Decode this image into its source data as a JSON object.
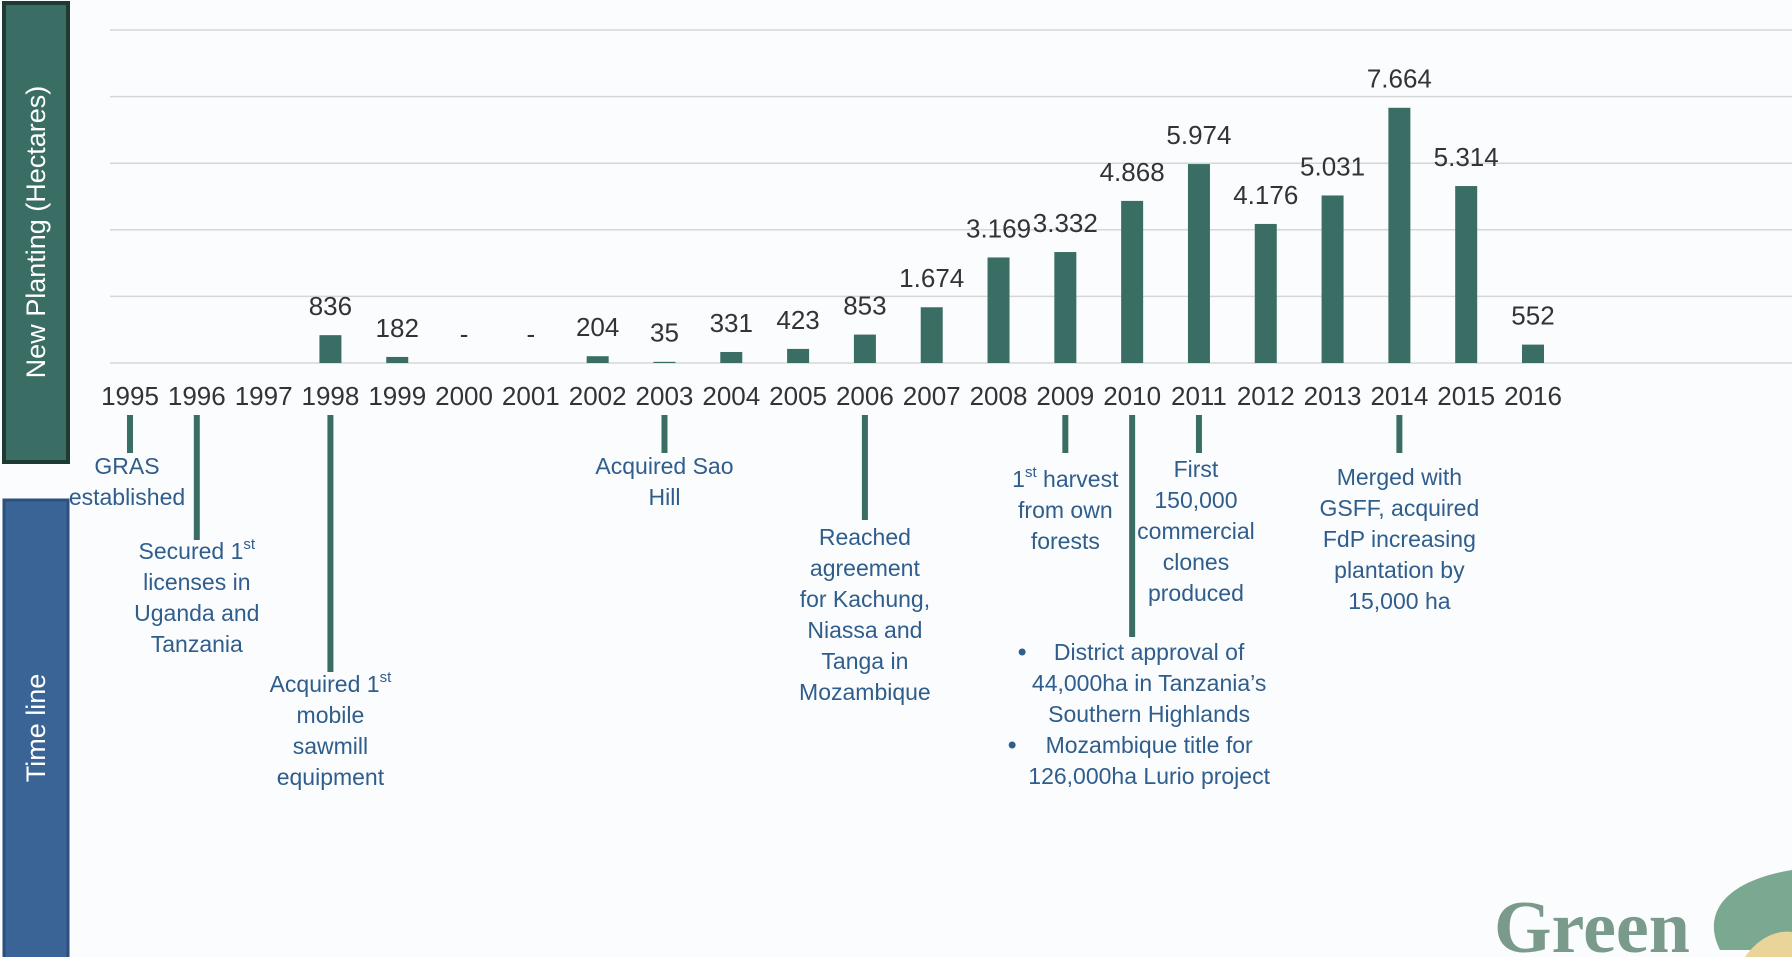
{
  "chart_data": {
    "type": "bar",
    "y_label": "New Planting (Hectares)",
    "categories": [
      "1995",
      "1996",
      "1997",
      "1998",
      "1999",
      "2000",
      "2001",
      "2002",
      "2003",
      "2004",
      "2005",
      "2006",
      "2007",
      "2008",
      "2009",
      "2010",
      "2011",
      "2012",
      "2013",
      "2014",
      "2015",
      "2016"
    ],
    "values": [
      null,
      null,
      null,
      836,
      182,
      0,
      0,
      204,
      35,
      331,
      423,
      853,
      1674,
      3169,
      3332,
      4868,
      5974,
      4176,
      5031,
      7664,
      5314,
      552
    ],
    "value_labels": [
      null,
      null,
      null,
      "836",
      "182",
      "-",
      "-",
      "204",
      "35",
      "331",
      "423",
      "853",
      "1.674",
      "3.169",
      "3.332",
      "4.868",
      "5.974",
      "4.176",
      "5.031",
      "7.664",
      "5.314",
      "552"
    ],
    "color": "#3a6e64",
    "ylim": [
      0,
      10000
    ],
    "yticks": [
      0,
      2000,
      4000,
      6000,
      8000,
      10000
    ],
    "grid": true
  },
  "timeline": {
    "title": "Time line",
    "color": "#2f5d8c",
    "events": [
      {
        "year": "1995",
        "lines": [
          "GRAS",
          "established"
        ]
      },
      {
        "year": "1996",
        "lines": [
          "Secured 1st",
          "licenses in",
          "Uganda and",
          "Tanzania"
        ]
      },
      {
        "year": "1998",
        "lines": [
          "Acquired 1st",
          "mobile",
          "sawmill",
          "equipment"
        ]
      },
      {
        "year": "2003",
        "lines": [
          "Acquired Sao",
          "Hill"
        ]
      },
      {
        "year": "2006",
        "lines": [
          "Reached",
          "agreement",
          "for Kachung,",
          "Niassa and",
          "Tanga in",
          "Mozambique"
        ]
      },
      {
        "year": "2009",
        "lines": [
          "1st harvest",
          "from own",
          "forests"
        ]
      },
      {
        "year": "2010",
        "bullets": [
          [
            "District approval of",
            "44,000ha in Tanzania’s",
            "Southern Highlands"
          ],
          [
            "Mozambique title for",
            "126,000ha Lurio project"
          ]
        ]
      },
      {
        "year": "2011",
        "lines": [
          "First",
          "150,000",
          "commercial",
          "clones",
          "produced"
        ]
      },
      {
        "year": "2014",
        "lines": [
          "Merged with",
          "GSFF, acquired",
          "FdP increasing",
          "plantation by",
          "15,000 ha"
        ]
      }
    ]
  },
  "logo_text": "Green"
}
